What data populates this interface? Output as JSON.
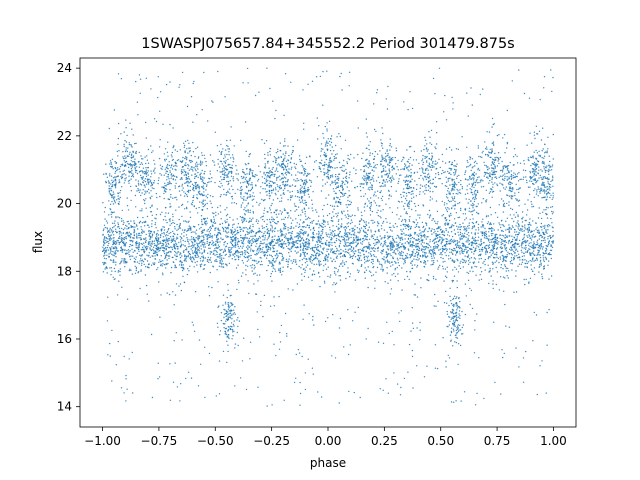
{
  "chart_data": {
    "type": "scatter",
    "title": "1SWASPJ075657.84+345552.2 Period 301479.875s",
    "xlabel": "phase",
    "ylabel": "flux",
    "xlim": [
      -1.1,
      1.1
    ],
    "ylim": [
      13.4,
      24.3
    ],
    "xticks": [
      -1.0,
      -0.75,
      -0.5,
      -0.25,
      0.0,
      0.25,
      0.5,
      0.75,
      1.0
    ],
    "xtick_labels": [
      "−1.00",
      "−0.75",
      "−0.50",
      "−0.25",
      "0.00",
      "0.25",
      "0.50",
      "0.75",
      "1.00"
    ],
    "yticks": [
      14,
      16,
      18,
      20,
      22,
      24
    ],
    "ytick_labels": [
      "14",
      "16",
      "18",
      "20",
      "22",
      "24"
    ],
    "grid": false,
    "point_color": "#1f77b4",
    "baseline_flux": 18.8,
    "baseline_spread": 0.45,
    "x_range": [
      -1.0,
      1.0
    ],
    "upper_clusters": [
      {
        "x": -0.95,
        "y": 20.5
      },
      {
        "x": -0.88,
        "y": 21.2
      },
      {
        "x": -0.81,
        "y": 20.7
      },
      {
        "x": -0.7,
        "y": 20.7
      },
      {
        "x": -0.62,
        "y": 21.0
      },
      {
        "x": -0.56,
        "y": 20.6
      },
      {
        "x": -0.45,
        "y": 21.0
      },
      {
        "x": -0.36,
        "y": 20.5
      },
      {
        "x": -0.26,
        "y": 20.6
      },
      {
        "x": -0.19,
        "y": 20.9
      },
      {
        "x": -0.11,
        "y": 20.6
      },
      {
        "x": 0.0,
        "y": 21.2
      },
      {
        "x": 0.06,
        "y": 20.5
      },
      {
        "x": 0.18,
        "y": 20.7
      },
      {
        "x": 0.26,
        "y": 21.0
      },
      {
        "x": 0.36,
        "y": 20.6
      },
      {
        "x": 0.45,
        "y": 21.0
      },
      {
        "x": 0.55,
        "y": 20.5
      },
      {
        "x": 0.64,
        "y": 20.6
      },
      {
        "x": 0.72,
        "y": 21.1
      },
      {
        "x": 0.81,
        "y": 20.6
      },
      {
        "x": 0.92,
        "y": 21.0
      },
      {
        "x": 0.97,
        "y": 20.6
      }
    ],
    "dips": [
      {
        "x": -0.44,
        "y": 16.6
      },
      {
        "x": 0.56,
        "y": 16.6
      }
    ]
  }
}
